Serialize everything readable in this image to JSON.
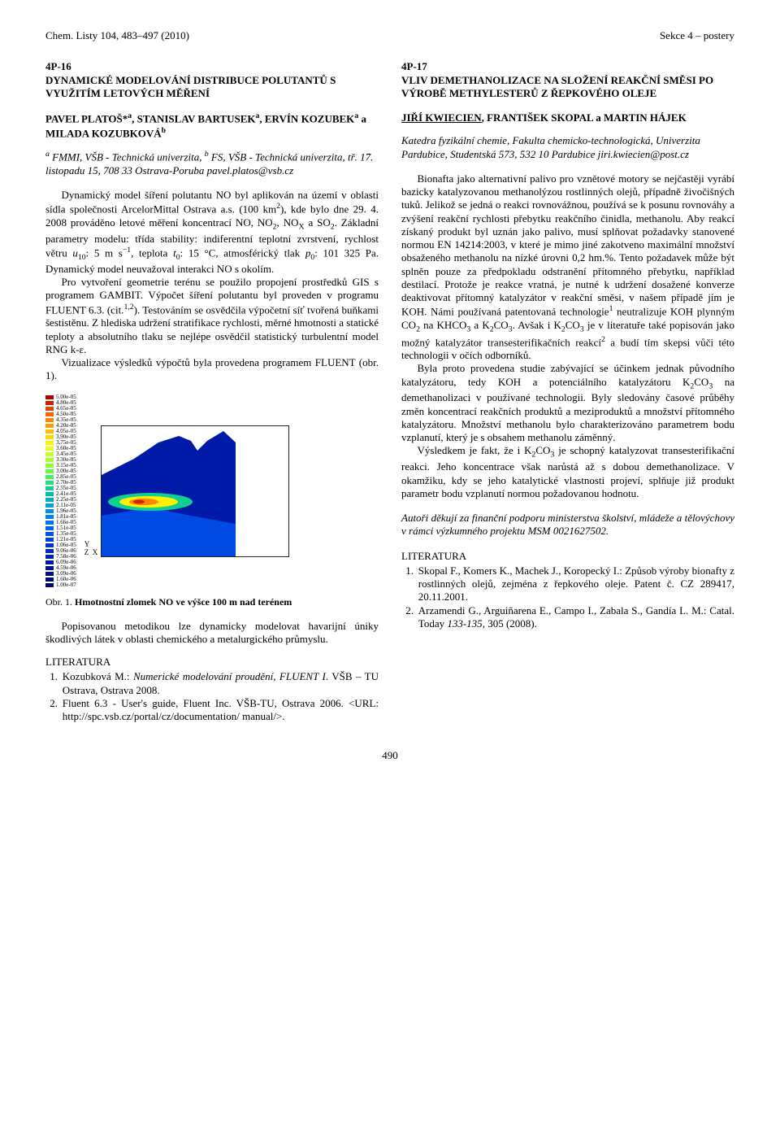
{
  "running_head": {
    "left": "Chem. Listy 104, 483–497 (2010)",
    "right": "Sekce 4 – postery"
  },
  "left_article": {
    "id": "4P-16",
    "title": "DYNAMICKÉ MODELOVÁNÍ DISTRIBUCE POLUTANTŮ S VYUŽITÍM LETOVÝCH MĚŘENÍ",
    "authors_html": "PAVEL PLATOŠ*<sup>a</sup>, STANISLAV BARTUSEK<sup>a</sup>, ERVÍN KOZUBEK<sup>a</sup> a MILADA KOZUBKOVÁ<sup>b</sup>",
    "affil_html": "<sup>a</sup> FMMI, VŠB - Technická univerzita, <sup>b</sup> FS, VŠB - Technická univerzita, tř. 17. listopadu 15, 708 33 Ostrava-Poruba pavel.platos@vsb.cz",
    "paras_html": [
      "Dynamický model šíření polutantu NO byl aplikován na území v oblasti sídla společnosti ArcelorMittal Ostrava a.s. (100 km<sup>2</sup>), kde bylo dne 29. 4. 2008 prováděno letové měření koncentrací NO, NO<sub>2</sub>, NO<sub>X</sub> a SO<sub>2</sub>. Základní parametry modelu: třída stability: indiferentní teplotní zvrstvení, rychlost větru <i>u</i><sub>10</sub>: 5 m s<sup>−1</sup>, teplota <i>t</i><sub>0</sub>: 15 °C, atmosférický tlak <i>p</i><sub>0</sub>: 101 325 Pa. Dynamický model neuvažoval interakci NO s okolím.",
      "Pro vytvoření geometrie terénu se použilo propojení prostředků GIS s programem GAMBIT. Výpočet šíření polutantu byl proveden v programu FLUENT 6.3. (cit.<sup>1,2</sup>). Testováním se osvědčila výpočetní síť tvořená buňkami šestistěnu. Z hlediska udržení stratifikace rychlosti, měrné hmotnosti a statické teploty a absolutního tlaku se nejlépe osvědčil statistický turbulentní model RNG k-ε.",
      "Vizualizace výsledků výpočtů byla provedena programem FLUENT (obr. 1)."
    ],
    "figure": {
      "caption_lead": "Obr. 1. ",
      "caption_bold": "Hmotnostní zlomek NO ve výšce 100 m nad terénem",
      "axes": {
        "y": "Y",
        "z": "Z",
        "x": "X"
      },
      "scale": {
        "labels": [
          "5.00e-05",
          "4.80e-05",
          "4.65e-05",
          "4.50e-05",
          "4.35e-05",
          "4.20e-05",
          "4.05e-05",
          "3.90e-05",
          "3.75e-05",
          "3.60e-05",
          "3.45e-05",
          "3.30e-05",
          "3.15e-05",
          "3.00e-05",
          "2.85e-05",
          "2.70e-05",
          "2.55e-05",
          "2.41e-05",
          "2.25e-05",
          "2.11e-05",
          "1.96e-05",
          "1.81e-05",
          "1.66e-05",
          "1.51e-05",
          "1.35e-05",
          "1.21e-05",
          "1.06e-05",
          "9.06e-06",
          "7.58e-06",
          "6.09e-06",
          "4.59e-06",
          "3.09e-06",
          "1.60e-06",
          "1.00e-07"
        ],
        "colors": [
          "#b30000",
          "#d42000",
          "#e84200",
          "#f56400",
          "#ff8200",
          "#ffa000",
          "#ffbc00",
          "#ffd800",
          "#fff200",
          "#e8ff0e",
          "#c8ff1c",
          "#a8ff2a",
          "#88ff38",
          "#68fc48",
          "#48f060",
          "#28e078",
          "#10d090",
          "#00c0a8",
          "#00b0c0",
          "#00a0d8",
          "#0090e8",
          "#0080f4",
          "#0070fc",
          "#0060fc",
          "#0050f4",
          "#0040e8",
          "#0034d8",
          "#0028c8",
          "#0020b8",
          "#001aa8",
          "#001498",
          "#001088",
          "#000c78",
          "#000868"
        ]
      },
      "plot": {
        "background": "#ffffff",
        "terrain_color": "#001aa8",
        "cloud_colors": [
          "#10d090",
          "#fff200",
          "#ff8200",
          "#d42000"
        ]
      }
    },
    "post_fig_para": "Popisovanou metodikou lze dynamicky modelovat havarijní úniky škodlivých látek v oblasti chemického a metalurgického průmyslu.",
    "lit_head": "LITERATURA",
    "refs_html": [
      "Kozubková M.: <i>Numerické modelování proudění, FLUENT I</i>. VŠB – TU Ostrava, Ostrava 2008.",
      "Fluent 6.3 - User's guide, Fluent Inc. VŠB-TU, Ostrava 2006. &lt;URL: http://spc.vsb.cz/portal/cz/documentation/ manual/&gt;."
    ]
  },
  "right_article": {
    "id": "4P-17",
    "title": "VLIV DEMETHANOLIZACE NA SLOŽENÍ REAKČNÍ SMĚSI PO VÝROBĚ METHYLESTERŮ Z ŘEPKOVÉHO OLEJE",
    "authors_html": "<u>JIŘÍ KWIECIEN</u>, FRANTIŠEK SKOPAL a MARTIN HÁJEK",
    "affil_html": "Katedra fyzikální chemie, Fakulta chemicko-technologická, Univerzita Pardubice, Studentská 573, 532 10 Pardubice jiri.kwiecien@post.cz",
    "paras_html": [
      "Bionafta jako alternativní palivo pro vznětové motory se nejčastěji vyrábí bazicky katalyzovanou methanolýzou rostlinných olejů, případně živočišných tuků. Jelikož se jedná o reakci rovnovážnou, používá se k posunu rovnováhy a zvýšení reakční rychlosti přebytku reakčního činidla, methanolu. Aby reakcí získaný produkt byl uznán jako palivo, musí splňovat požadavky stanovené normou EN 14214:2003, v které je mimo jiné zakotveno maximální množství obsaženého methanolu na nízké úrovni 0,2 hm.%. Tento požadavek může být splněn pouze za předpokladu odstranění přítomného přebytku, například destilací. Protože je reakce vratná, je nutné k udržení dosažené konverze deaktivovat přítomný katalyzátor v reakční směsi, v našem případě jím je KOH. Námi používaná patentovaná technologie<sup>1</sup> neutralizuje KOH plynným CO<sub>2</sub> na KHCO<sub>3</sub> a K<sub>2</sub>CO<sub>3</sub>. Avšak i K<sub>2</sub>CO<sub>3</sub> je v literatuře také popisován jako možný katalyzátor transesterifikačních reakcí<sup>2</sup> a budí tím skepsi vůči této technologii v očích odborníků.",
      "Byla proto provedena studie zabývající se účinkem jednak původního katalyzátoru, tedy KOH a potenciálního katalyzátoru K<sub>2</sub>CO<sub>3</sub> na demethanolizaci v používané technologii. Byly sledovány časové průběhy změn koncentrací reakčních produktů a meziproduktů a množství přítomného katalyzátoru. Množství methanolu bylo charakterizováno parametrem bodu vzplanutí, který je s obsahem methanolu záměnný.",
      "Výsledkem je fakt, že i K<sub>2</sub>CO<sub>3</sub> je schopný katalyzovat transesterifikační reakci. Jeho koncentrace však narůstá až s dobou demethanolizace. V okamžiku, kdy se jeho katalytické vlastnosti projeví, splňuje již produkt parametr bodu vzplanutí normou požadovanou hodnotu."
    ],
    "ack": "Autoři děkují za finanční podporu ministerstva školství, mládeže a tělovýchovy v rámci výzkumného projektu MSM 0021627502.",
    "lit_head": "LITERATURA",
    "refs_html": [
      "Skopal F., Komers K., Machek J., Koropecký I.: Způsob výroby bionafty z rostlinných olejů, zejména z řepkového oleje. Patent č. CZ 289417, 20.11.2001.",
      "Arzamendi G., Arguiñarena E., Campo I., Zabala S., Gandía L. M.: Catal. Today <i>133-135</i>, 305 (2008)."
    ]
  },
  "page_number": "490"
}
